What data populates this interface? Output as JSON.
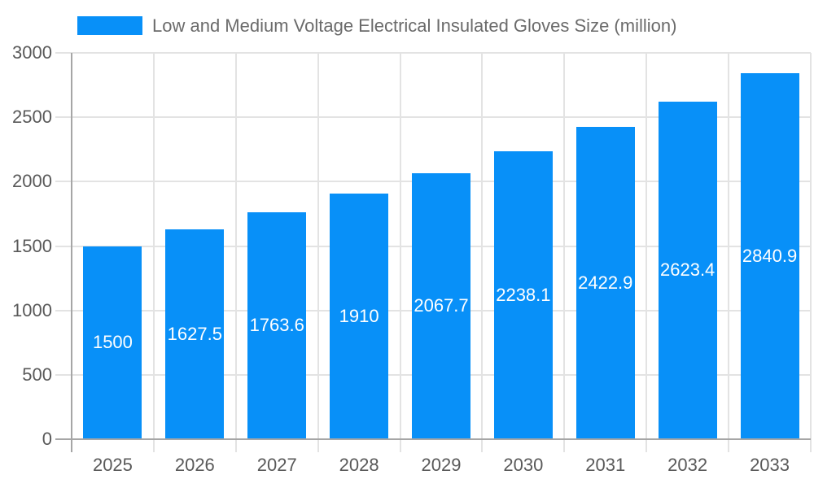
{
  "chart_data": {
    "type": "bar",
    "title": "Low and Medium Voltage Electrical Insulated Gloves Size (million)",
    "legend_position": "top",
    "categories": [
      "2025",
      "2026",
      "2027",
      "2028",
      "2029",
      "2030",
      "2031",
      "2032",
      "2033"
    ],
    "series": [
      {
        "name": "Low and Medium Voltage Electrical Insulated Gloves Size (million)",
        "values": [
          1500,
          1627.5,
          1763.6,
          1910,
          2067.7,
          2238.1,
          2422.9,
          2623.4,
          2840.9
        ],
        "color": "#0890f8"
      }
    ],
    "xlabel": "",
    "ylabel": "",
    "ylim": [
      0,
      3000
    ],
    "yticks": [
      0,
      500,
      1000,
      1500,
      2000,
      2500,
      3000
    ],
    "grid": true,
    "data_labels": {
      "show": true,
      "position": "inside-center",
      "color": "#ffffff"
    },
    "colors": {
      "bar": "#0890f8",
      "axis_line": "#a6a6a6",
      "gridline": "#e3e3e3",
      "axis_text": "#595959",
      "legend_text": "#6b6b6b",
      "background": "#ffffff"
    }
  }
}
